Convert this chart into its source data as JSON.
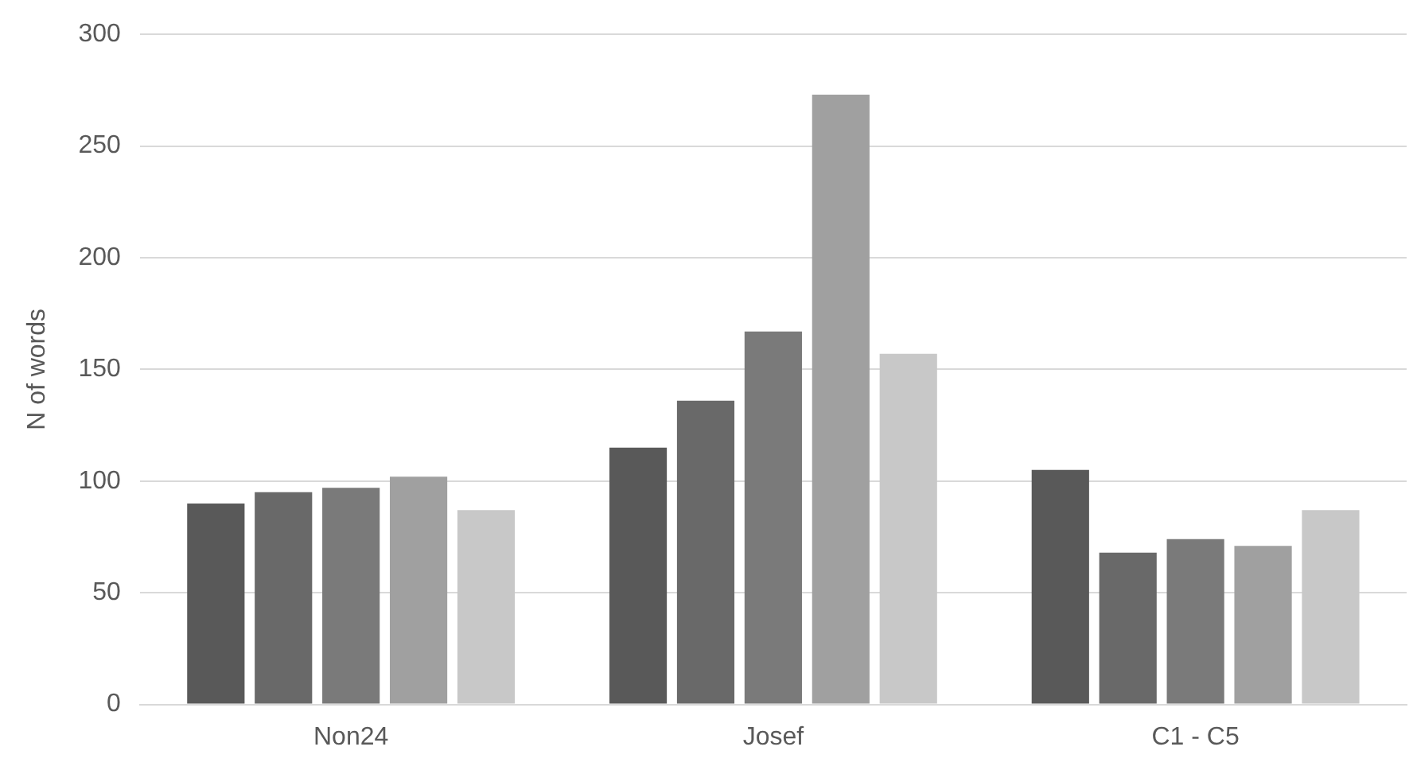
{
  "chart_data": {
    "type": "bar",
    "ylabel": "N of words",
    "categories": [
      "Non24",
      "Josef",
      "C1 - C5"
    ],
    "series": [
      {
        "color": "#595959",
        "values": [
          90,
          115,
          105
        ]
      },
      {
        "color": "#696969",
        "values": [
          95,
          136,
          68
        ]
      },
      {
        "color": "#7a7a7a",
        "values": [
          97,
          167,
          74
        ]
      },
      {
        "color": "#a0a0a0",
        "values": [
          102,
          273,
          71
        ]
      },
      {
        "color": "#c8c8c8",
        "values": [
          87,
          157,
          87
        ]
      }
    ],
    "ylim": [
      0,
      300
    ],
    "yticks": [
      0,
      50,
      100,
      150,
      200,
      250,
      300
    ],
    "grid": "y",
    "legend": false
  }
}
